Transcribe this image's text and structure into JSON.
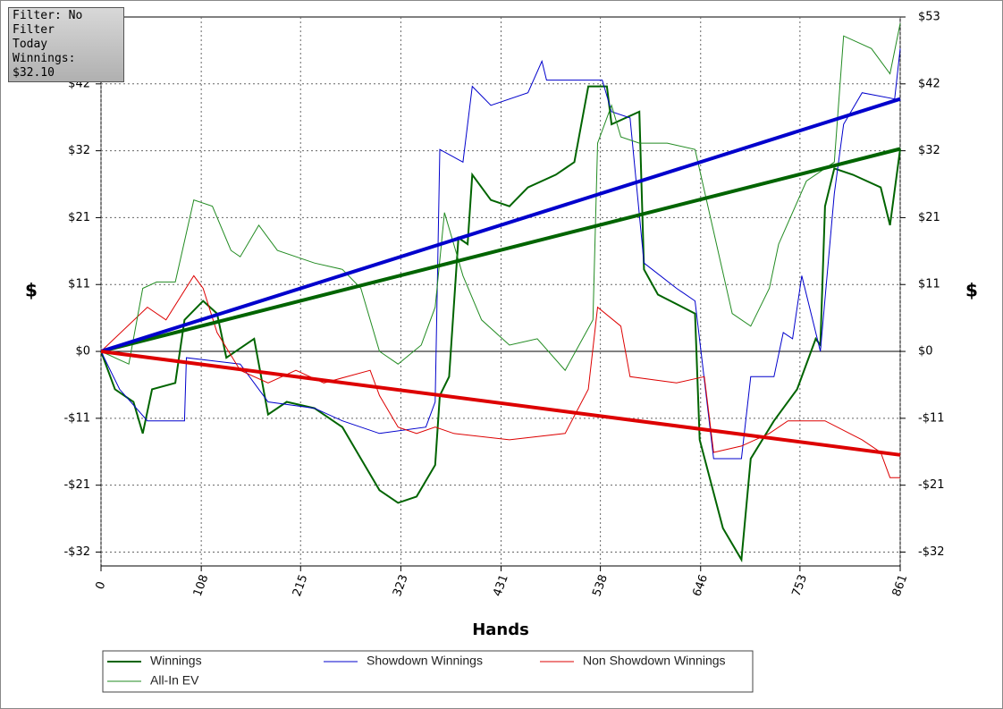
{
  "chart_data": {
    "type": "line",
    "info": [
      "Filter: No Filter",
      "Today",
      "Winnings: $32.10"
    ],
    "xlabel": "Hands",
    "ylabel": "$",
    "y2label": "$",
    "xlim": [
      0,
      861
    ],
    "xticks": [
      0,
      108,
      215,
      323,
      431,
      538,
      646,
      753,
      861
    ],
    "ylim": [
      -34,
      53
    ],
    "yticks": [
      {
        "value": -31.8,
        "label": "-$32"
      },
      {
        "value": -21.2,
        "label": "-$21"
      },
      {
        "value": -10.6,
        "label": "-$11"
      },
      {
        "value": 0,
        "label": "$0"
      },
      {
        "value": 10.6,
        "label": "$11"
      },
      {
        "value": 21.2,
        "label": "$21"
      },
      {
        "value": 31.8,
        "label": "$32"
      },
      {
        "value": 42.4,
        "label": "$42"
      }
    ],
    "y2lim": [
      -34,
      53
    ],
    "y2ticks": [
      {
        "value": -31.8,
        "label": "-$32"
      },
      {
        "value": -21.2,
        "label": "-$21"
      },
      {
        "value": -10.6,
        "label": "-$11"
      },
      {
        "value": 0,
        "label": "$0"
      },
      {
        "value": 10.6,
        "label": "$11"
      },
      {
        "value": 21.2,
        "label": "$21"
      },
      {
        "value": 31.8,
        "label": "$32"
      },
      {
        "value": 42.4,
        "label": "$42"
      },
      {
        "value": 53,
        "label": "$53"
      }
    ],
    "grid": true,
    "series": [
      {
        "name": "Winnings",
        "color": "#006400",
        "width": 2,
        "x": [
          0,
          15,
          35,
          45,
          55,
          80,
          90,
          110,
          125,
          135,
          165,
          180,
          200,
          230,
          260,
          280,
          300,
          320,
          340,
          360,
          365,
          375,
          385,
          395,
          400,
          420,
          440,
          460,
          490,
          510,
          525,
          545,
          550,
          580,
          585,
          600,
          640,
          645,
          670,
          690,
          700,
          725,
          750,
          770,
          775,
          780,
          790,
          810,
          840,
          850,
          861
        ],
        "values": [
          0,
          -6,
          -8,
          -13,
          -6,
          -5,
          5,
          8,
          6,
          -1,
          2,
          -10,
          -8,
          -9,
          -12,
          -17,
          -22,
          -24,
          -23,
          -18,
          -7,
          -4,
          18,
          17,
          28,
          24,
          23,
          26,
          28,
          30,
          42,
          42,
          36,
          38,
          13,
          9,
          6,
          -14,
          -28,
          -33,
          -17,
          -11,
          -6,
          2,
          1,
          23,
          29,
          28,
          26,
          20,
          32.1
        ],
        "trendline": {
          "x": [
            0,
            861
          ],
          "values": [
            0,
            32.1
          ]
        }
      },
      {
        "name": "Showdown Winnings",
        "color": "#0000cc",
        "width": 1,
        "x": [
          0,
          20,
          50,
          90,
          92,
          150,
          180,
          230,
          260,
          300,
          350,
          360,
          365,
          390,
          400,
          420,
          460,
          475,
          480,
          540,
          550,
          570,
          585,
          620,
          640,
          660,
          690,
          700,
          725,
          735,
          745,
          755,
          775,
          790,
          800,
          820,
          855,
          861
        ],
        "values": [
          0,
          -6,
          -11,
          -11,
          -1,
          -2,
          -8,
          -9,
          -11,
          -13,
          -12,
          -8,
          32,
          30,
          42,
          39,
          41,
          46,
          43,
          43,
          38,
          37,
          14,
          10,
          8,
          -17,
          -17,
          -4,
          -4,
          3,
          2,
          12,
          0,
          25,
          36,
          41,
          40,
          48
        ],
        "trendline": {
          "x": [
            0,
            861
          ],
          "values": [
            0,
            40
          ]
        }
      },
      {
        "name": "Non Showdown Winnings",
        "color": "#dd0000",
        "width": 1,
        "x": [
          0,
          50,
          70,
          100,
          110,
          125,
          150,
          180,
          210,
          240,
          290,
          300,
          320,
          340,
          360,
          380,
          440,
          500,
          525,
          535,
          560,
          570,
          620,
          650,
          660,
          690,
          720,
          740,
          780,
          820,
          840,
          850,
          861
        ],
        "values": [
          0,
          7,
          5,
          12,
          10,
          3,
          -3,
          -5,
          -3,
          -5,
          -3,
          -7,
          -12,
          -13,
          -12,
          -13,
          -14,
          -13,
          -6,
          7,
          4,
          -4,
          -5,
          -4,
          -16,
          -15,
          -13,
          -11,
          -11,
          -14,
          -16,
          -20,
          -20
        ],
        "trendline": {
          "x": [
            0,
            861
          ],
          "values": [
            0,
            -16.4
          ]
        }
      },
      {
        "name": "All-In EV",
        "color": "#228b22",
        "width": 1,
        "x": [
          0,
          30,
          45,
          60,
          80,
          100,
          120,
          140,
          150,
          170,
          190,
          230,
          260,
          280,
          300,
          320,
          345,
          360,
          370,
          380,
          390,
          410,
          440,
          470,
          500,
          530,
          535,
          550,
          560,
          580,
          610,
          640,
          660,
          680,
          700,
          720,
          730,
          760,
          790,
          800,
          830,
          850,
          861
        ],
        "values": [
          0,
          -2,
          10,
          11,
          11,
          24,
          23,
          16,
          15,
          20,
          16,
          14,
          13,
          10,
          0,
          -2,
          1,
          7,
          22,
          17,
          12,
          5,
          1,
          2,
          -3,
          5,
          33,
          39,
          34,
          33,
          33,
          32,
          19,
          6,
          4,
          10,
          17,
          27,
          30,
          50,
          48,
          44,
          52
        ]
      }
    ]
  }
}
